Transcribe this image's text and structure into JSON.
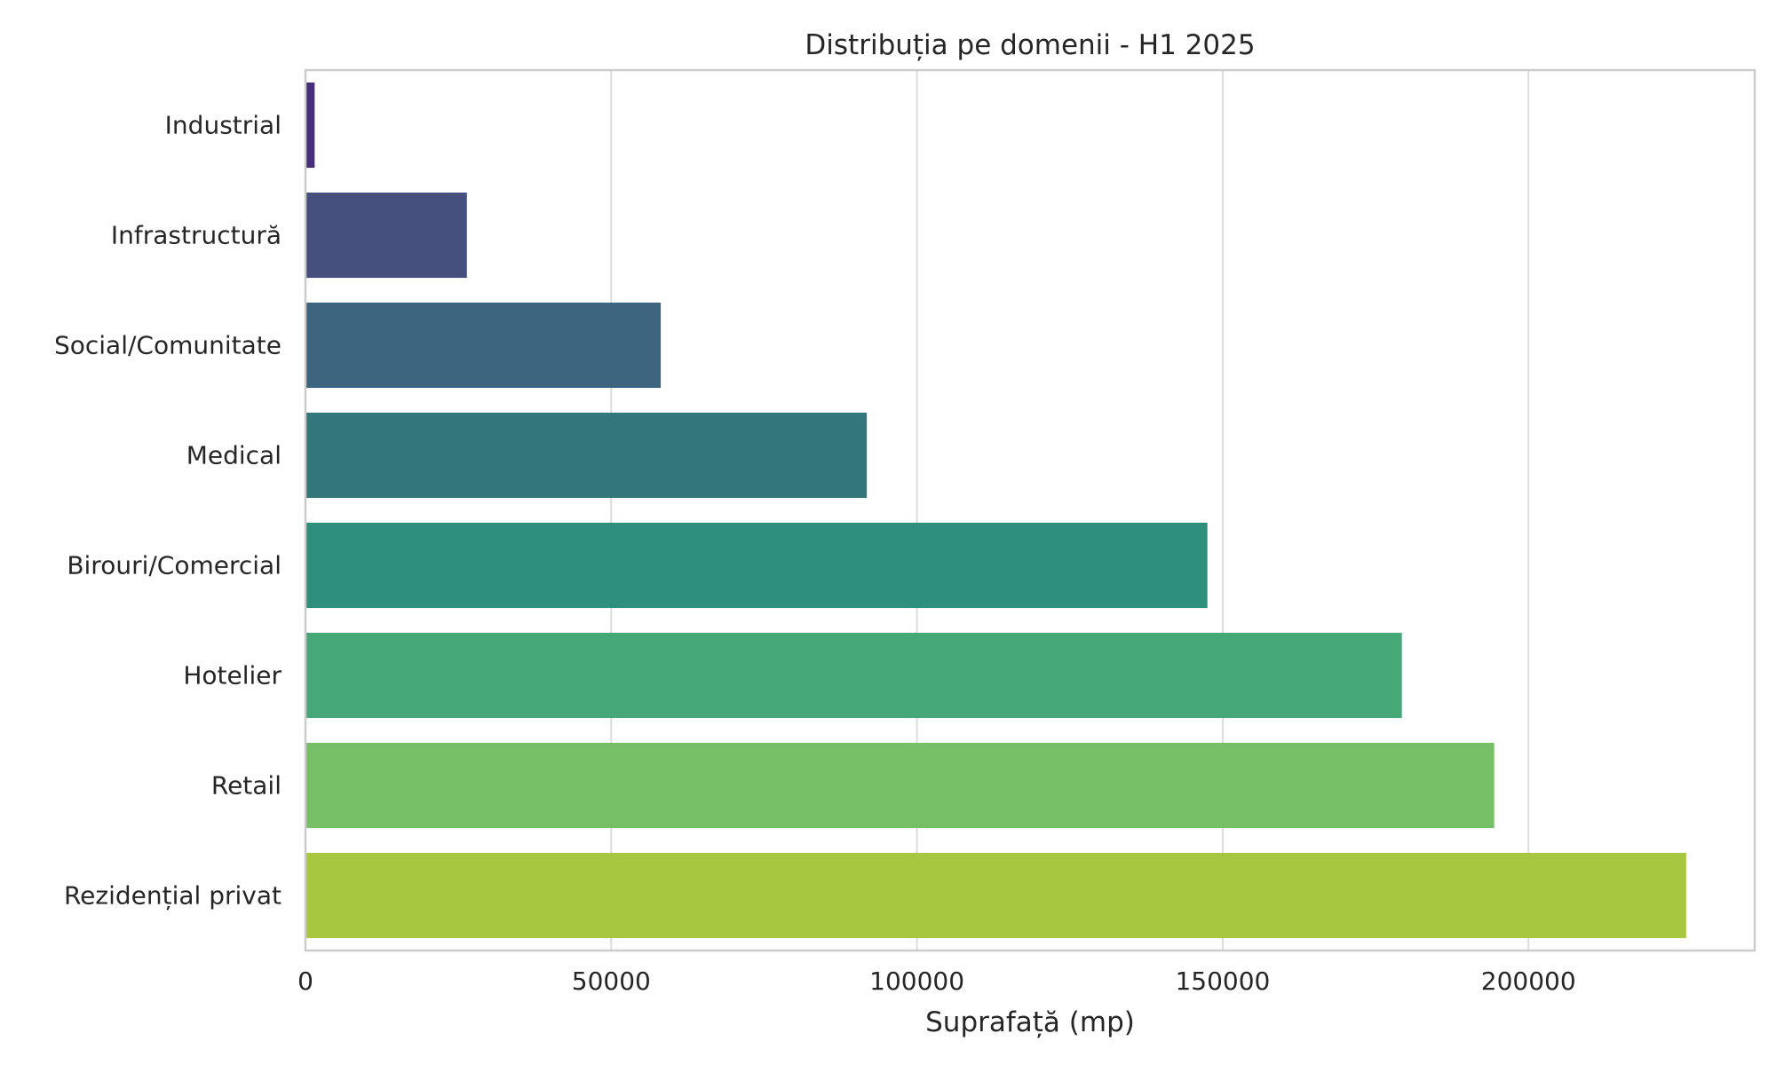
{
  "chart_data": {
    "type": "bar",
    "orientation": "horizontal",
    "title": "Distribuția pe domenii - H1 2025",
    "xlabel": "Suprafață (mp)",
    "ylabel": "",
    "xlim": [
      0,
      237000
    ],
    "xticks": [
      0,
      50000,
      100000,
      150000,
      200000
    ],
    "xtick_labels": [
      "0",
      "50000",
      "100000",
      "150000",
      "200000"
    ],
    "grid": "vertical",
    "categories": [
      "Industrial",
      "Infrastructură",
      "Social/Comunitate",
      "Medical",
      "Birouri/Comercial",
      "Hotelier",
      "Retail",
      "Rezidențial privat"
    ],
    "values": [
      1500,
      26400,
      58100,
      91800,
      147500,
      179300,
      194400,
      225800
    ],
    "colors": [
      "#472d7b",
      "#46507e",
      "#3e657f",
      "#33777d",
      "#2d8f7c",
      "#46a877",
      "#76bf66",
      "#a8c741"
    ]
  }
}
